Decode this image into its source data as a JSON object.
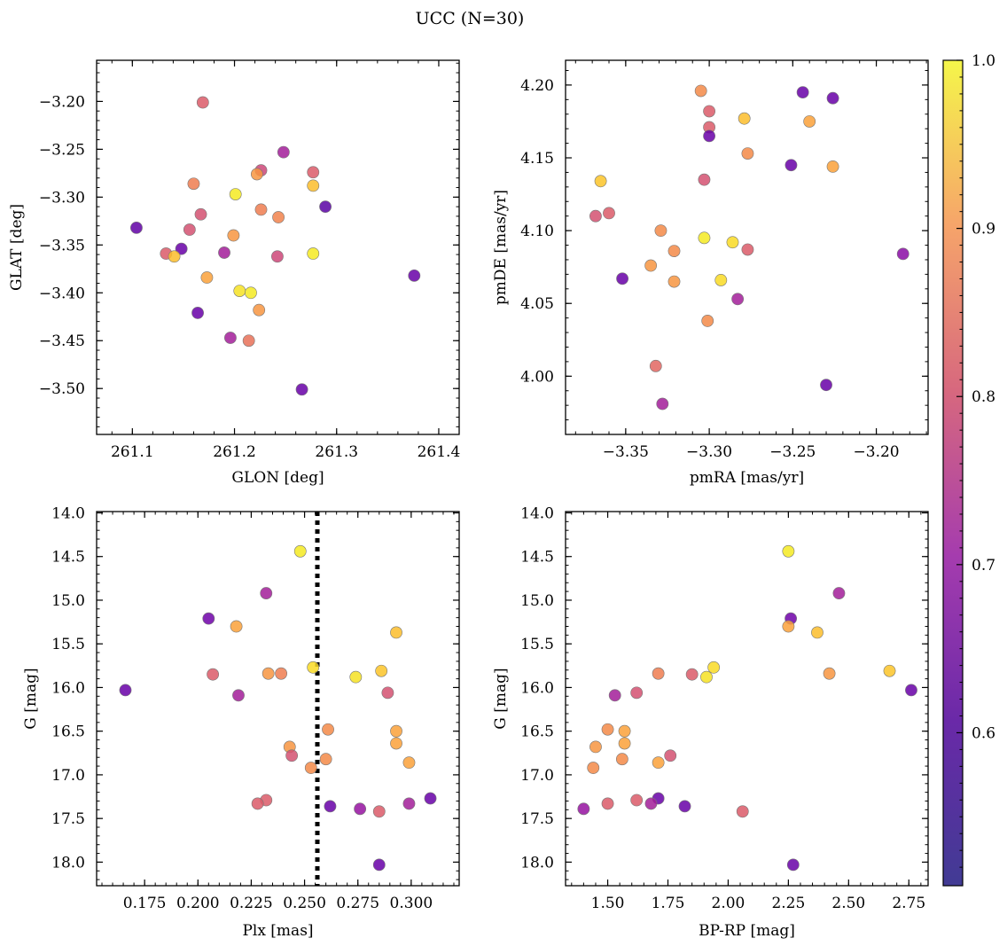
{
  "title": "UCC (N=30)",
  "colorbar": {
    "ticks": [
      "1.0",
      "0.9",
      "0.8",
      "0.7",
      "0.6"
    ],
    "tick_values": [
      1.0,
      0.9,
      0.8,
      0.7,
      0.6
    ],
    "range": [
      0.509,
      1.0
    ],
    "colormap": "plasma"
  },
  "chart_data": [
    {
      "type": "scatter",
      "xlabel": "GLON [deg]",
      "ylabel": "GLAT [deg]",
      "xlim": [
        261.065,
        261.42
      ],
      "ylim": [
        -3.548,
        -3.157
      ],
      "invert_y": false,
      "x_ticks": [
        261.1,
        261.2,
        261.3,
        261.4
      ],
      "x_tick_labels": [
        "261.1",
        "261.2",
        "261.3",
        "261.4"
      ],
      "y_ticks": [
        -3.2,
        -3.25,
        -3.3,
        -3.35,
        -3.4,
        -3.45,
        -3.5
      ],
      "y_tick_labels": [
        "−3.20",
        "−3.25",
        "−3.30",
        "−3.35",
        "−3.40",
        "−3.45",
        "−3.50"
      ],
      "x_minor_step": 0.02,
      "y_minor_step": 0.01,
      "vline": null,
      "points": [
        {
          "x": 261.169,
          "y": -3.201,
          "c": 0.76
        },
        {
          "x": 261.248,
          "y": -3.253,
          "c": 0.64
        },
        {
          "x": 261.226,
          "y": -3.272,
          "c": 0.72
        },
        {
          "x": 261.277,
          "y": -3.274,
          "c": 0.76
        },
        {
          "x": 261.222,
          "y": -3.276,
          "c": 0.86
        },
        {
          "x": 261.16,
          "y": -3.286,
          "c": 0.82
        },
        {
          "x": 261.277,
          "y": -3.288,
          "c": 0.92
        },
        {
          "x": 261.201,
          "y": -3.297,
          "c": 0.98
        },
        {
          "x": 261.289,
          "y": -3.31,
          "c": 0.53
        },
        {
          "x": 261.226,
          "y": -3.313,
          "c": 0.82
        },
        {
          "x": 261.167,
          "y": -3.318,
          "c": 0.74
        },
        {
          "x": 261.243,
          "y": -3.321,
          "c": 0.83
        },
        {
          "x": 261.104,
          "y": -3.332,
          "c": 0.54
        },
        {
          "x": 261.156,
          "y": -3.334,
          "c": 0.74
        },
        {
          "x": 261.199,
          "y": -3.34,
          "c": 0.86
        },
        {
          "x": 261.148,
          "y": -3.354,
          "c": 0.55
        },
        {
          "x": 261.133,
          "y": -3.359,
          "c": 0.76
        },
        {
          "x": 261.19,
          "y": -3.358,
          "c": 0.64
        },
        {
          "x": 261.277,
          "y": -3.359,
          "c": 0.98
        },
        {
          "x": 261.141,
          "y": -3.362,
          "c": 0.92
        },
        {
          "x": 261.242,
          "y": -3.362,
          "c": 0.72
        },
        {
          "x": 261.376,
          "y": -3.382,
          "c": 0.55
        },
        {
          "x": 261.173,
          "y": -3.384,
          "c": 0.88
        },
        {
          "x": 261.205,
          "y": -3.398,
          "c": 0.97
        },
        {
          "x": 261.216,
          "y": -3.4,
          "c": 0.98
        },
        {
          "x": 261.224,
          "y": -3.418,
          "c": 0.86
        },
        {
          "x": 261.164,
          "y": -3.421,
          "c": 0.55
        },
        {
          "x": 261.196,
          "y": -3.447,
          "c": 0.64
        },
        {
          "x": 261.214,
          "y": -3.45,
          "c": 0.8
        },
        {
          "x": 261.266,
          "y": -3.501,
          "c": 0.55
        }
      ]
    },
    {
      "type": "scatter",
      "xlabel": "pmRA [mas/yr]",
      "ylabel": "pmDE [mas/yr]",
      "xlim": [
        -3.386,
        -3.169
      ],
      "ylim": [
        3.96,
        4.217
      ],
      "invert_y": false,
      "x_ticks": [
        -3.35,
        -3.3,
        -3.25,
        -3.2
      ],
      "x_tick_labels": [
        "−3.35",
        "−3.30",
        "−3.25",
        "−3.20"
      ],
      "y_ticks": [
        4.0,
        4.05,
        4.1,
        4.15,
        4.2
      ],
      "y_tick_labels": [
        "4.00",
        "4.05",
        "4.10",
        "4.15",
        "4.20"
      ],
      "x_minor_step": 0.01,
      "y_minor_step": 0.01,
      "vline": null,
      "points": [
        {
          "x": -3.305,
          "y": 4.196,
          "c": 0.84
        },
        {
          "x": -3.244,
          "y": 4.195,
          "c": 0.55
        },
        {
          "x": -3.226,
          "y": 4.191,
          "c": 0.55
        },
        {
          "x": -3.3,
          "y": 4.182,
          "c": 0.76
        },
        {
          "x": -3.279,
          "y": 4.177,
          "c": 0.92
        },
        {
          "x": -3.24,
          "y": 4.175,
          "c": 0.88
        },
        {
          "x": -3.3,
          "y": 4.171,
          "c": 0.76
        },
        {
          "x": -3.3,
          "y": 4.165,
          "c": 0.55
        },
        {
          "x": -3.277,
          "y": 4.153,
          "c": 0.84
        },
        {
          "x": -3.251,
          "y": 4.145,
          "c": 0.55
        },
        {
          "x": -3.226,
          "y": 4.144,
          "c": 0.88
        },
        {
          "x": -3.365,
          "y": 4.134,
          "c": 0.93
        },
        {
          "x": -3.303,
          "y": 4.135,
          "c": 0.74
        },
        {
          "x": -3.36,
          "y": 4.112,
          "c": 0.76
        },
        {
          "x": -3.368,
          "y": 4.11,
          "c": 0.74
        },
        {
          "x": -3.329,
          "y": 4.1,
          "c": 0.84
        },
        {
          "x": -3.303,
          "y": 4.095,
          "c": 0.98
        },
        {
          "x": -3.286,
          "y": 4.092,
          "c": 0.96
        },
        {
          "x": -3.277,
          "y": 4.087,
          "c": 0.76
        },
        {
          "x": -3.321,
          "y": 4.086,
          "c": 0.84
        },
        {
          "x": -3.184,
          "y": 4.084,
          "c": 0.6
        },
        {
          "x": -3.335,
          "y": 4.076,
          "c": 0.86
        },
        {
          "x": -3.352,
          "y": 4.067,
          "c": 0.55
        },
        {
          "x": -3.293,
          "y": 4.066,
          "c": 0.96
        },
        {
          "x": -3.321,
          "y": 4.065,
          "c": 0.86
        },
        {
          "x": -3.283,
          "y": 4.053,
          "c": 0.64
        },
        {
          "x": -3.301,
          "y": 4.038,
          "c": 0.84
        },
        {
          "x": -3.332,
          "y": 4.007,
          "c": 0.78
        },
        {
          "x": -3.23,
          "y": 3.994,
          "c": 0.55
        },
        {
          "x": -3.328,
          "y": 3.981,
          "c": 0.64
        }
      ]
    },
    {
      "type": "scatter",
      "xlabel": "Plx [mas]",
      "ylabel": "G [mag]",
      "xlim": [
        0.1525,
        0.3225
      ],
      "ylim": [
        13.985,
        18.27
      ],
      "invert_y": true,
      "x_ticks": [
        0.175,
        0.2,
        0.225,
        0.25,
        0.275,
        0.3
      ],
      "x_tick_labels": [
        "0.175",
        "0.200",
        "0.225",
        "0.250",
        "0.275",
        "0.300"
      ],
      "y_ticks": [
        14.0,
        14.5,
        15.0,
        15.5,
        16.0,
        16.5,
        17.0,
        17.5,
        18.0
      ],
      "y_tick_labels": [
        "14.0",
        "14.5",
        "15.0",
        "15.5",
        "16.0",
        "16.5",
        "17.0",
        "17.5",
        "18.0"
      ],
      "x_minor_step": 0.005,
      "y_minor_step": 0.1,
      "vline": 0.256,
      "points": [
        {
          "x": 0.248,
          "y": 14.44,
          "c": 0.98
        },
        {
          "x": 0.232,
          "y": 14.92,
          "c": 0.64
        },
        {
          "x": 0.205,
          "y": 15.21,
          "c": 0.56
        },
        {
          "x": 0.218,
          "y": 15.3,
          "c": 0.88
        },
        {
          "x": 0.293,
          "y": 15.37,
          "c": 0.92
        },
        {
          "x": 0.254,
          "y": 15.77,
          "c": 0.96
        },
        {
          "x": 0.286,
          "y": 15.81,
          "c": 0.93
        },
        {
          "x": 0.233,
          "y": 15.84,
          "c": 0.86
        },
        {
          "x": 0.239,
          "y": 15.84,
          "c": 0.82
        },
        {
          "x": 0.207,
          "y": 15.85,
          "c": 0.76
        },
        {
          "x": 0.274,
          "y": 15.88,
          "c": 0.97
        },
        {
          "x": 0.166,
          "y": 16.03,
          "c": 0.55
        },
        {
          "x": 0.289,
          "y": 16.06,
          "c": 0.74
        },
        {
          "x": 0.219,
          "y": 16.09,
          "c": 0.64
        },
        {
          "x": 0.261,
          "y": 16.48,
          "c": 0.84
        },
        {
          "x": 0.293,
          "y": 16.5,
          "c": 0.88
        },
        {
          "x": 0.293,
          "y": 16.64,
          "c": 0.88
        },
        {
          "x": 0.243,
          "y": 16.68,
          "c": 0.86
        },
        {
          "x": 0.244,
          "y": 16.78,
          "c": 0.74
        },
        {
          "x": 0.26,
          "y": 16.82,
          "c": 0.84
        },
        {
          "x": 0.299,
          "y": 16.86,
          "c": 0.88
        },
        {
          "x": 0.253,
          "y": 16.92,
          "c": 0.84
        },
        {
          "x": 0.309,
          "y": 17.27,
          "c": 0.55
        },
        {
          "x": 0.232,
          "y": 17.29,
          "c": 0.76
        },
        {
          "x": 0.228,
          "y": 17.33,
          "c": 0.76
        },
        {
          "x": 0.299,
          "y": 17.33,
          "c": 0.64
        },
        {
          "x": 0.262,
          "y": 17.36,
          "c": 0.55
        },
        {
          "x": 0.276,
          "y": 17.39,
          "c": 0.62
        },
        {
          "x": 0.285,
          "y": 17.42,
          "c": 0.76
        },
        {
          "x": 0.285,
          "y": 18.03,
          "c": 0.55
        }
      ]
    },
    {
      "type": "scatter",
      "xlabel": "BP-RP [mag]",
      "ylabel": "G [mag]",
      "xlim": [
        1.325,
        2.83
      ],
      "ylim": [
        13.985,
        18.27
      ],
      "invert_y": true,
      "x_ticks": [
        1.5,
        1.75,
        2.0,
        2.25,
        2.5,
        2.75
      ],
      "x_tick_labels": [
        "1.50",
        "1.75",
        "2.00",
        "2.25",
        "2.50",
        "2.75"
      ],
      "y_ticks": [
        14.0,
        14.5,
        15.0,
        15.5,
        16.0,
        16.5,
        17.0,
        17.5,
        18.0
      ],
      "y_tick_labels": [
        "14.0",
        "14.5",
        "15.0",
        "15.5",
        "16.0",
        "16.5",
        "17.0",
        "17.5",
        "18.0"
      ],
      "x_minor_step": 0.05,
      "y_minor_step": 0.1,
      "vline": null,
      "points": [
        {
          "x": 2.25,
          "y": 14.44,
          "c": 0.98
        },
        {
          "x": 2.46,
          "y": 14.92,
          "c": 0.64
        },
        {
          "x": 2.26,
          "y": 15.21,
          "c": 0.56
        },
        {
          "x": 2.25,
          "y": 15.3,
          "c": 0.88
        },
        {
          "x": 2.37,
          "y": 15.37,
          "c": 0.92
        },
        {
          "x": 1.94,
          "y": 15.77,
          "c": 0.96
        },
        {
          "x": 2.67,
          "y": 15.81,
          "c": 0.93
        },
        {
          "x": 2.42,
          "y": 15.84,
          "c": 0.86
        },
        {
          "x": 1.71,
          "y": 15.84,
          "c": 0.82
        },
        {
          "x": 1.85,
          "y": 15.85,
          "c": 0.76
        },
        {
          "x": 1.91,
          "y": 15.88,
          "c": 0.97
        },
        {
          "x": 2.76,
          "y": 16.03,
          "c": 0.55
        },
        {
          "x": 1.62,
          "y": 16.06,
          "c": 0.74
        },
        {
          "x": 1.53,
          "y": 16.09,
          "c": 0.64
        },
        {
          "x": 1.5,
          "y": 16.48,
          "c": 0.84
        },
        {
          "x": 1.57,
          "y": 16.5,
          "c": 0.88
        },
        {
          "x": 1.57,
          "y": 16.64,
          "c": 0.88
        },
        {
          "x": 1.45,
          "y": 16.68,
          "c": 0.86
        },
        {
          "x": 1.76,
          "y": 16.78,
          "c": 0.74
        },
        {
          "x": 1.56,
          "y": 16.82,
          "c": 0.84
        },
        {
          "x": 1.71,
          "y": 16.86,
          "c": 0.88
        },
        {
          "x": 1.44,
          "y": 16.92,
          "c": 0.84
        },
        {
          "x": 1.71,
          "y": 17.27,
          "c": 0.55
        },
        {
          "x": 1.62,
          "y": 17.29,
          "c": 0.76
        },
        {
          "x": 1.5,
          "y": 17.33,
          "c": 0.76
        },
        {
          "x": 1.68,
          "y": 17.33,
          "c": 0.64
        },
        {
          "x": 1.82,
          "y": 17.36,
          "c": 0.55
        },
        {
          "x": 1.4,
          "y": 17.39,
          "c": 0.62
        },
        {
          "x": 2.06,
          "y": 17.42,
          "c": 0.76
        },
        {
          "x": 2.27,
          "y": 18.03,
          "c": 0.55
        }
      ]
    }
  ]
}
